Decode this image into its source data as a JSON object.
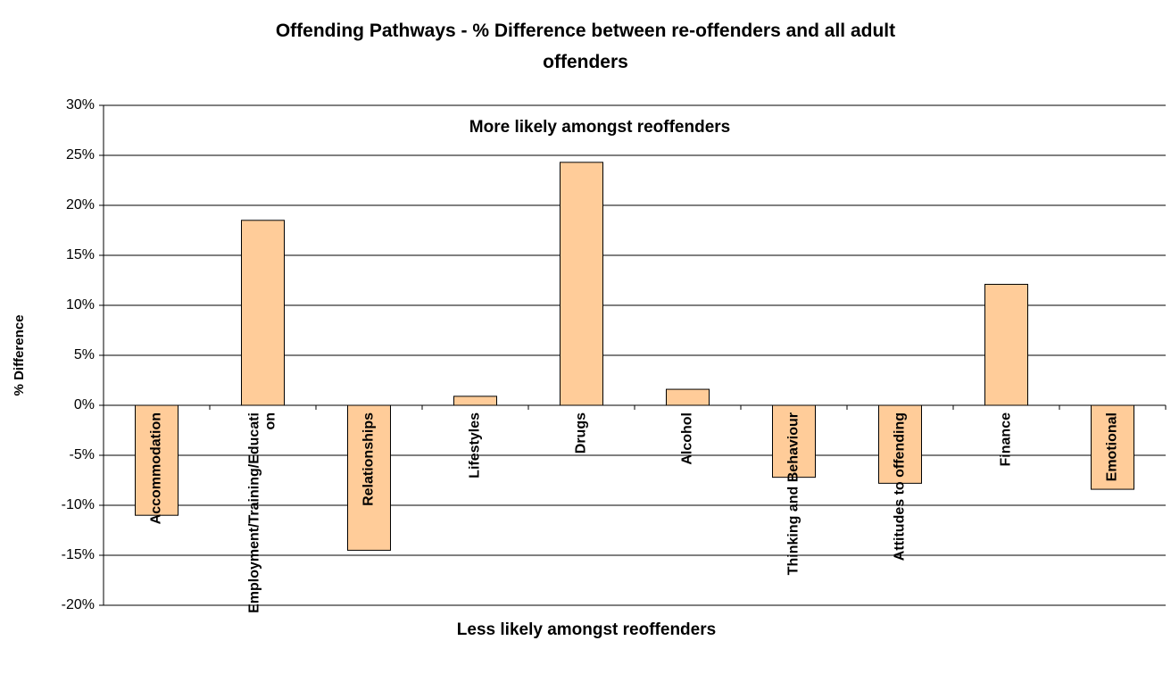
{
  "chart_data": {
    "type": "bar",
    "title": "Offending Pathways - % Difference between re-offenders and all adult offenders",
    "y_label": "% Difference",
    "annotations": [
      "More likely amongst reoffenders",
      "Less likely amongst reoffenders"
    ],
    "categories": [
      "Accommodation",
      "Employment/Training/Education",
      "Relationships",
      "Lifestyles",
      "Drugs",
      "Alcohol",
      "Thinking and Behaviour",
      "Attitudes to offending",
      "Finance",
      "Emotional"
    ],
    "values": [
      -11,
      18.5,
      -14.5,
      0.9,
      24.3,
      1.6,
      -7.2,
      -7.8,
      12.1,
      -8.4
    ],
    "color": "#ffcc99",
    "ylim": [
      -20,
      30
    ],
    "yticks": [
      {
        "value": -20,
        "label": "-20%"
      },
      {
        "value": -15,
        "label": "-15%"
      },
      {
        "value": -10,
        "label": "-10%"
      },
      {
        "value": -5,
        "label": "-5%"
      },
      {
        "value": 0,
        "label": "0%"
      },
      {
        "value": 5,
        "label": "5%"
      },
      {
        "value": 10,
        "label": "10%"
      },
      {
        "value": 15,
        "label": "15%"
      },
      {
        "value": 20,
        "label": "20%"
      },
      {
        "value": 25,
        "label": "25%"
      },
      {
        "value": 30,
        "label": "30%"
      }
    ],
    "grid": true
  }
}
